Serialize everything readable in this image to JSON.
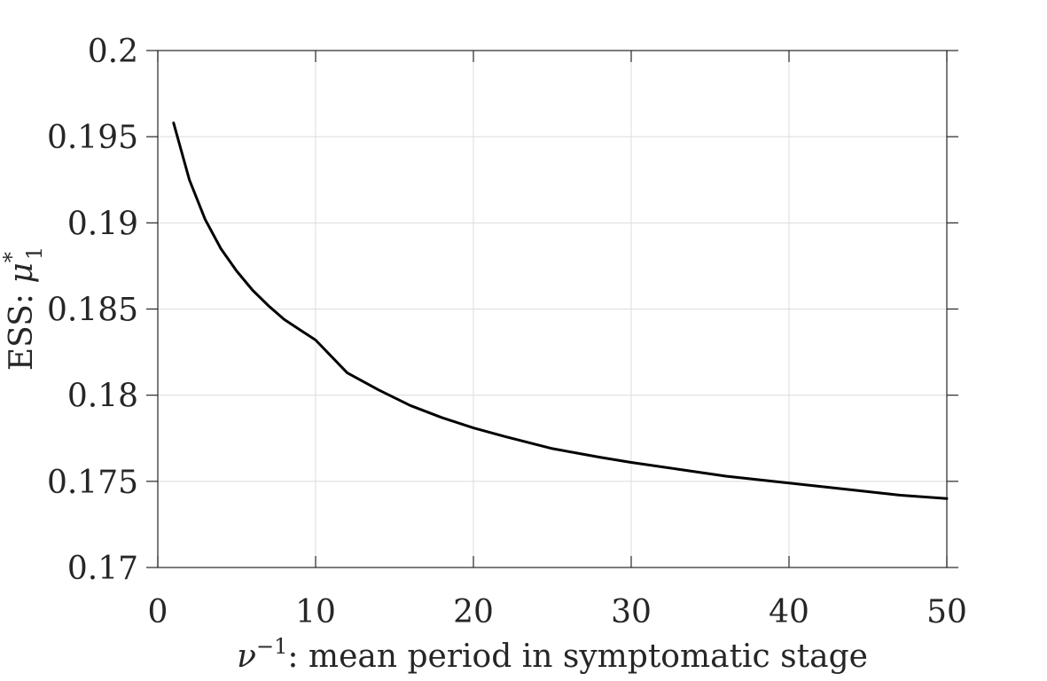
{
  "chart_data": {
    "type": "line",
    "title": "",
    "xlabel_prefix": "ν",
    "xlabel_superscript": "−1",
    "xlabel_suffix": ": mean period in symptomatic stage",
    "ylabel_prefix": "ESS: ",
    "ylabel_symbol": "μ",
    "ylabel_superscript": "*",
    "ylabel_subscript": "1",
    "xlim": [
      0,
      50
    ],
    "ylim": [
      0.17,
      0.2
    ],
    "xticks": [
      0,
      10,
      20,
      30,
      40,
      50
    ],
    "xtick_labels": [
      "0",
      "10",
      "20",
      "30",
      "40",
      "50"
    ],
    "yticks": [
      0.17,
      0.175,
      0.18,
      0.185,
      0.19,
      0.195,
      0.2
    ],
    "ytick_labels": [
      "0.17",
      "0.175",
      "0.18",
      "0.185",
      "0.19",
      "0.195",
      "0.2"
    ],
    "grid": true,
    "box": true,
    "series": [
      {
        "color": "#000000",
        "x": [
          1,
          2,
          3,
          4,
          5,
          6,
          7,
          8,
          9,
          10,
          12,
          14,
          16,
          18,
          20,
          22,
          25,
          28,
          30,
          33,
          36,
          40,
          44,
          47,
          50
        ],
        "y": [
          0.1958,
          0.1925,
          0.1902,
          0.1885,
          0.1872,
          0.1861,
          0.1852,
          0.1844,
          0.1838,
          0.1832,
          0.1813,
          0.1803,
          0.1794,
          0.1787,
          0.1781,
          0.1776,
          0.1769,
          0.1764,
          0.1761,
          0.1757,
          0.1753,
          0.1749,
          0.1745,
          0.1742,
          0.174
        ]
      }
    ]
  }
}
